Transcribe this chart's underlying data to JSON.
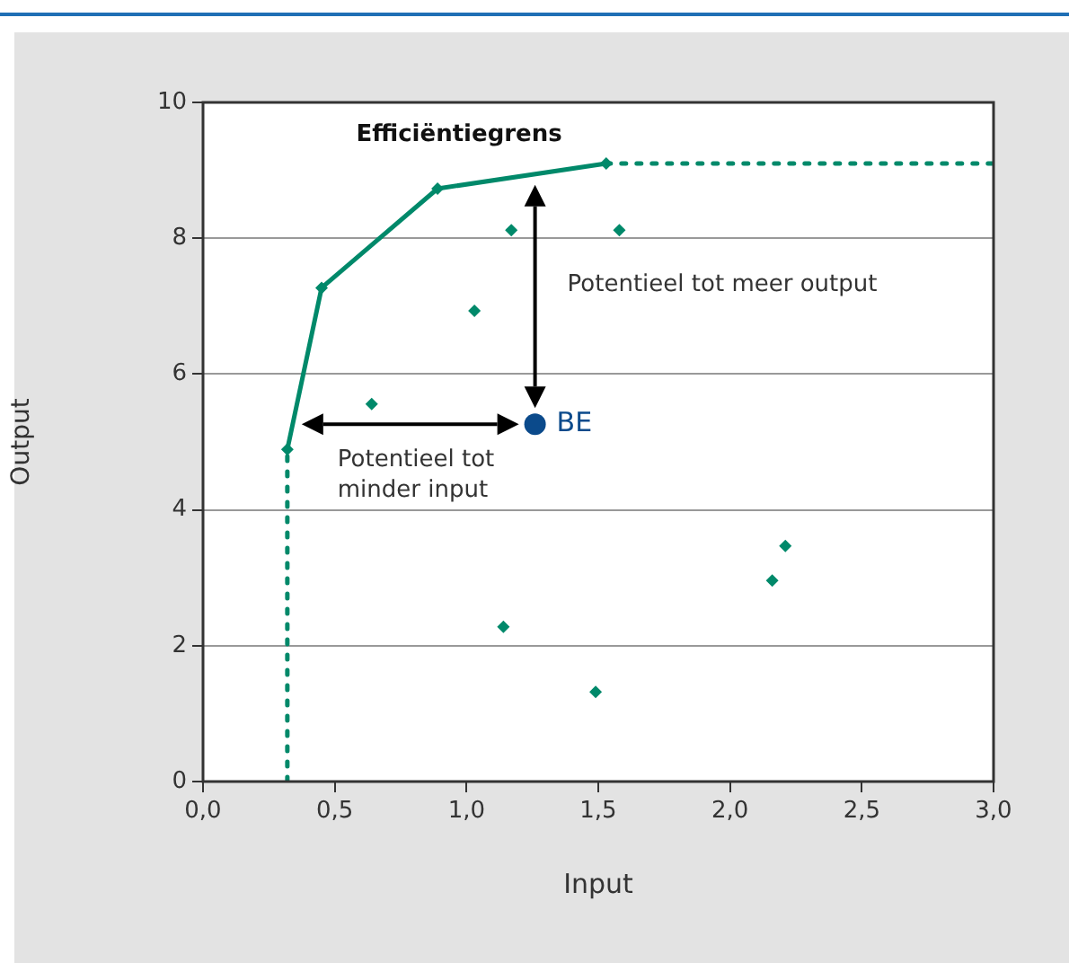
{
  "chart_data": {
    "type": "scatter",
    "xlabel": "Input",
    "ylabel": "Output",
    "xlim": [
      0,
      3
    ],
    "xticks": [
      {
        "value": 0,
        "label": "0,0"
      },
      {
        "value": 0.5,
        "label": "0,5"
      },
      {
        "value": 1,
        "label": "1,0"
      },
      {
        "value": 1.5,
        "label": "1,5"
      },
      {
        "value": 2,
        "label": "2,0"
      },
      {
        "value": 2.5,
        "label": "2,5"
      },
      {
        "value": 3,
        "label": "3,0"
      }
    ],
    "ylim": [
      0,
      10
    ],
    "yticks": [
      0,
      2,
      4,
      6,
      8,
      10
    ],
    "grid": "y",
    "legend": false,
    "series": [
      {
        "type": "line",
        "name": "Efficiëntiegrens",
        "color": "#00896a",
        "x": [
          0.32,
          0.45,
          0.89,
          1.53
        ],
        "values": [
          4.89,
          7.27,
          8.73,
          9.1
        ],
        "marker": "diamond",
        "line_style": "solid"
      },
      {
        "type": "line",
        "color": "#00896a",
        "x": [
          0.32,
          0.32
        ],
        "values": [
          0,
          4.89
        ],
        "marker": "none",
        "line_style": "dotted"
      },
      {
        "type": "line",
        "color": "#00896a",
        "x": [
          1.53,
          3.0
        ],
        "values": [
          9.1,
          9.1
        ],
        "marker": "none",
        "line_style": "dotted"
      },
      {
        "type": "scatter",
        "color": "#00896a",
        "x": [
          0.64,
          1.03,
          1.17,
          1.58,
          1.14,
          1.49,
          2.16,
          2.21
        ],
        "values": [
          5.56,
          6.93,
          8.12,
          8.12,
          2.28,
          1.32,
          2.96,
          3.47
        ],
        "marker": "diamond"
      },
      {
        "type": "scatter",
        "name": "BE",
        "color": "#0b4a8b",
        "x": [
          1.26
        ],
        "values": [
          5.26
        ],
        "marker": "circle"
      }
    ],
    "annotations": [
      "Potentieel tot meer output",
      "Potentieel tot\nminder input"
    ]
  }
}
